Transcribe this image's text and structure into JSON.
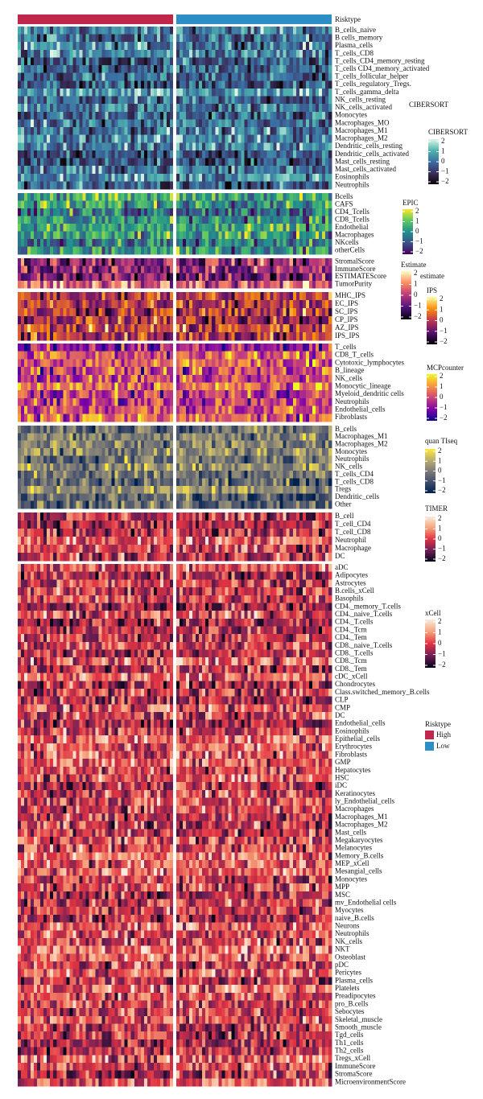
{
  "annotation": {
    "label": "Risktype",
    "groups": [
      {
        "name": "High",
        "color": "#c1274a"
      },
      {
        "name": "Low",
        "color": "#2e8fc6"
      }
    ]
  },
  "panels": [
    {
      "name": "CIBERSORT",
      "rows": [
        "B_cells_naive",
        "B cells_memory",
        "Plasma_cells",
        "T_cells_CD8",
        "T_cells_CD4_memory_resting",
        "T_cells CD4_memory_activated",
        "T_cells_follicular_helper",
        "T_cells_regulatory_Tregs.",
        "T_cells_gamma_delta",
        "NK_cells_resting",
        "NK_cells_activated",
        "Monocytes",
        "Macrophages_MO",
        "Macrophages_M1",
        "Macrophages_M2",
        "Dendritic_cells_resting",
        "Dendritic_cells_activated",
        "Mast_cells_resting",
        "Mast_cells_activated",
        "Eosinophils",
        "Neutrophils"
      ],
      "legend": {
        "title": "CIBERSORT",
        "colors": [
          "#def5e5",
          "#4fb4ad",
          "#3a6fa3",
          "#3b2f5e",
          "#0b0405"
        ],
        "ticks": [
          2,
          1,
          0,
          {
            "value": -1,
            "label": "−1"
          },
          {
            "value": -2,
            "label": "−2"
          }
        ]
      }
    },
    {
      "name": "EPIC",
      "rows": [
        "Bcells",
        "CAFS",
        "CD4_Tcells",
        "CD8_Tcells",
        "Endothelial",
        "Macrophages",
        "NKcells",
        "otherCells"
      ],
      "legend": {
        "title": "EPIC",
        "colors": [
          "#fde725",
          "#5ec962",
          "#21918c",
          "#3b528b",
          "#440154"
        ],
        "ticks": [
          2,
          1,
          0,
          {
            "value": -1,
            "label": "−1"
          },
          {
            "value": -2,
            "label": "−2"
          }
        ]
      }
    },
    {
      "name": "Estimate",
      "rows": [
        "StromalScore",
        "ImmuneScore",
        "ESTIMATEScore",
        "TumorPurity"
      ],
      "legend": {
        "title": "Estimate",
        "colors": [
          "#fcfdbf",
          "#fc8961",
          "#b73779",
          "#51127c",
          "#000004"
        ],
        "ticks": [
          2,
          1,
          0,
          {
            "value": -1,
            "label": "−1"
          },
          {
            "value": -2,
            "label": "−2"
          }
        ]
      }
    },
    {
      "name": "IPS",
      "rows": [
        "MHC_IPS",
        "EC_IPS",
        "SC_IPS",
        "CP_IPS",
        "AZ_IPS",
        "IPS_IPS"
      ],
      "legend": {
        "title": "IPS",
        "colors": [
          "#fcffa4",
          "#f98e09",
          "#bc3754",
          "#57106e",
          "#000004"
        ],
        "ticks": [
          2,
          1,
          0,
          {
            "value": -1,
            "label": "−1"
          },
          {
            "value": -2,
            "label": "−2"
          }
        ]
      }
    },
    {
      "name": "MCPcounter",
      "rows": [
        "T_cells",
        "CD8_T_cells",
        "Cytotoxic_lymphocytes",
        "B_lineage",
        "NK_cells",
        "Monocytic_lineage",
        "Myeloid_dendritic cells",
        "Neutrophils",
        "Endothelial_cells",
        "Fibroblasts"
      ],
      "legend": {
        "title": "MCPcounter",
        "colors": [
          "#f0f921",
          "#f89540",
          "#cc4778",
          "#7e03a8",
          "#0d0887"
        ],
        "ticks": [
          2,
          1,
          0,
          {
            "value": -1,
            "label": "−1"
          },
          {
            "value": -2,
            "label": "−2"
          }
        ]
      }
    },
    {
      "name": "quanTIseq",
      "rows": [
        "B_cells",
        "Macrophages_M1",
        "Macrophages_M2",
        "Monocytes",
        "Neutrophils",
        "NK_cells",
        "T_cells_CD4",
        "T_cells_CD8",
        "Tregs",
        "Dendritic_cells",
        "Other"
      ],
      "legend": {
        "title": "quan TIseq",
        "colors": [
          "#fee838",
          "#bcaf6f",
          "#7c7b78",
          "#414d6b",
          "#00204d"
        ],
        "ticks": [
          2,
          1,
          0,
          {
            "value": -1,
            "label": "−1"
          },
          {
            "value": -2,
            "label": "−2"
          }
        ]
      }
    },
    {
      "name": "TIMER",
      "rows": [
        "B_cell",
        "T_cell_CD4",
        "T_cell_CD8",
        "Neutrophil",
        "Macrophage",
        "DC"
      ],
      "legend": {
        "title": "TIMER",
        "colors": [
          "#faebdd",
          "#f6a47c",
          "#e13342",
          "#701f57",
          "#03051a"
        ],
        "ticks": [
          2,
          1,
          0,
          {
            "value": -1,
            "label": "−1"
          },
          {
            "value": -2,
            "label": "−2"
          }
        ]
      }
    },
    {
      "name": "xCell",
      "rows": [
        "aDC",
        "Adipocytes",
        "Astrocytes",
        "B.cells_xCell",
        "Basophils",
        "CD4._memory_T.cells",
        "CD4._naive_T.cells",
        "CD4._T.cells",
        "CD4._Tcm",
        "CD4._Tem",
        "CD8._naive_T.cells",
        "CD8._T.cells",
        "CD8._Tcm",
        "CD8._Tem",
        "cDC_xCell",
        "Chondrocytes",
        "Class.switched_memory_B.cells",
        "CLP",
        "CMP",
        "DC",
        "Endothelial_cells",
        "Eosinophils",
        "Epithelial_cells",
        "Erythrocytes",
        "Fibroblasts",
        "GMP",
        "Hepatocytes",
        "HSC",
        "iDC",
        "Keratinocytes",
        "ly_Endothelial_cells",
        "Macrophages",
        "Macrophages_M1",
        "Macrophages_M2",
        "Mast_cells",
        "Megakaryocytes",
        "Melanocytes",
        "Memory_B.cells",
        "MEP_xCell",
        "Mesangial_cells",
        "Monocytes",
        "MPP",
        "MSC",
        "mv_Endothelial cells",
        "Myocytes",
        "naive_B.cells",
        "Neurons",
        "Neutrophils",
        "NK_cells",
        "NKT",
        "Osteoblast",
        "pDC",
        "Pericytes",
        "Plasma_cells",
        "Platelets",
        "Preadipocytes",
        "pro_B.cells",
        "Sebocytes",
        "Skeletal_muscle",
        "Smooth_muscle",
        "Tgd_cells",
        "Th1_cells",
        "Th2_cells",
        "Tregs_xCell",
        "ImmuneScore",
        "StromaScore",
        "MicroenvironmentScore"
      ],
      "legend": {
        "title": "xCell",
        "colors": [
          "#faebdd",
          "#f6a47c",
          "#e13342",
          "#701f57",
          "#03051a"
        ],
        "ticks": [
          2,
          1,
          0,
          {
            "value": -1,
            "label": "−1"
          },
          {
            "value": -2,
            "label": "−2"
          }
        ]
      }
    }
  ],
  "extra_labels": [
    "CIBERSORT",
    "estimate"
  ],
  "legend": {
    "title": "Risktype"
  }
}
